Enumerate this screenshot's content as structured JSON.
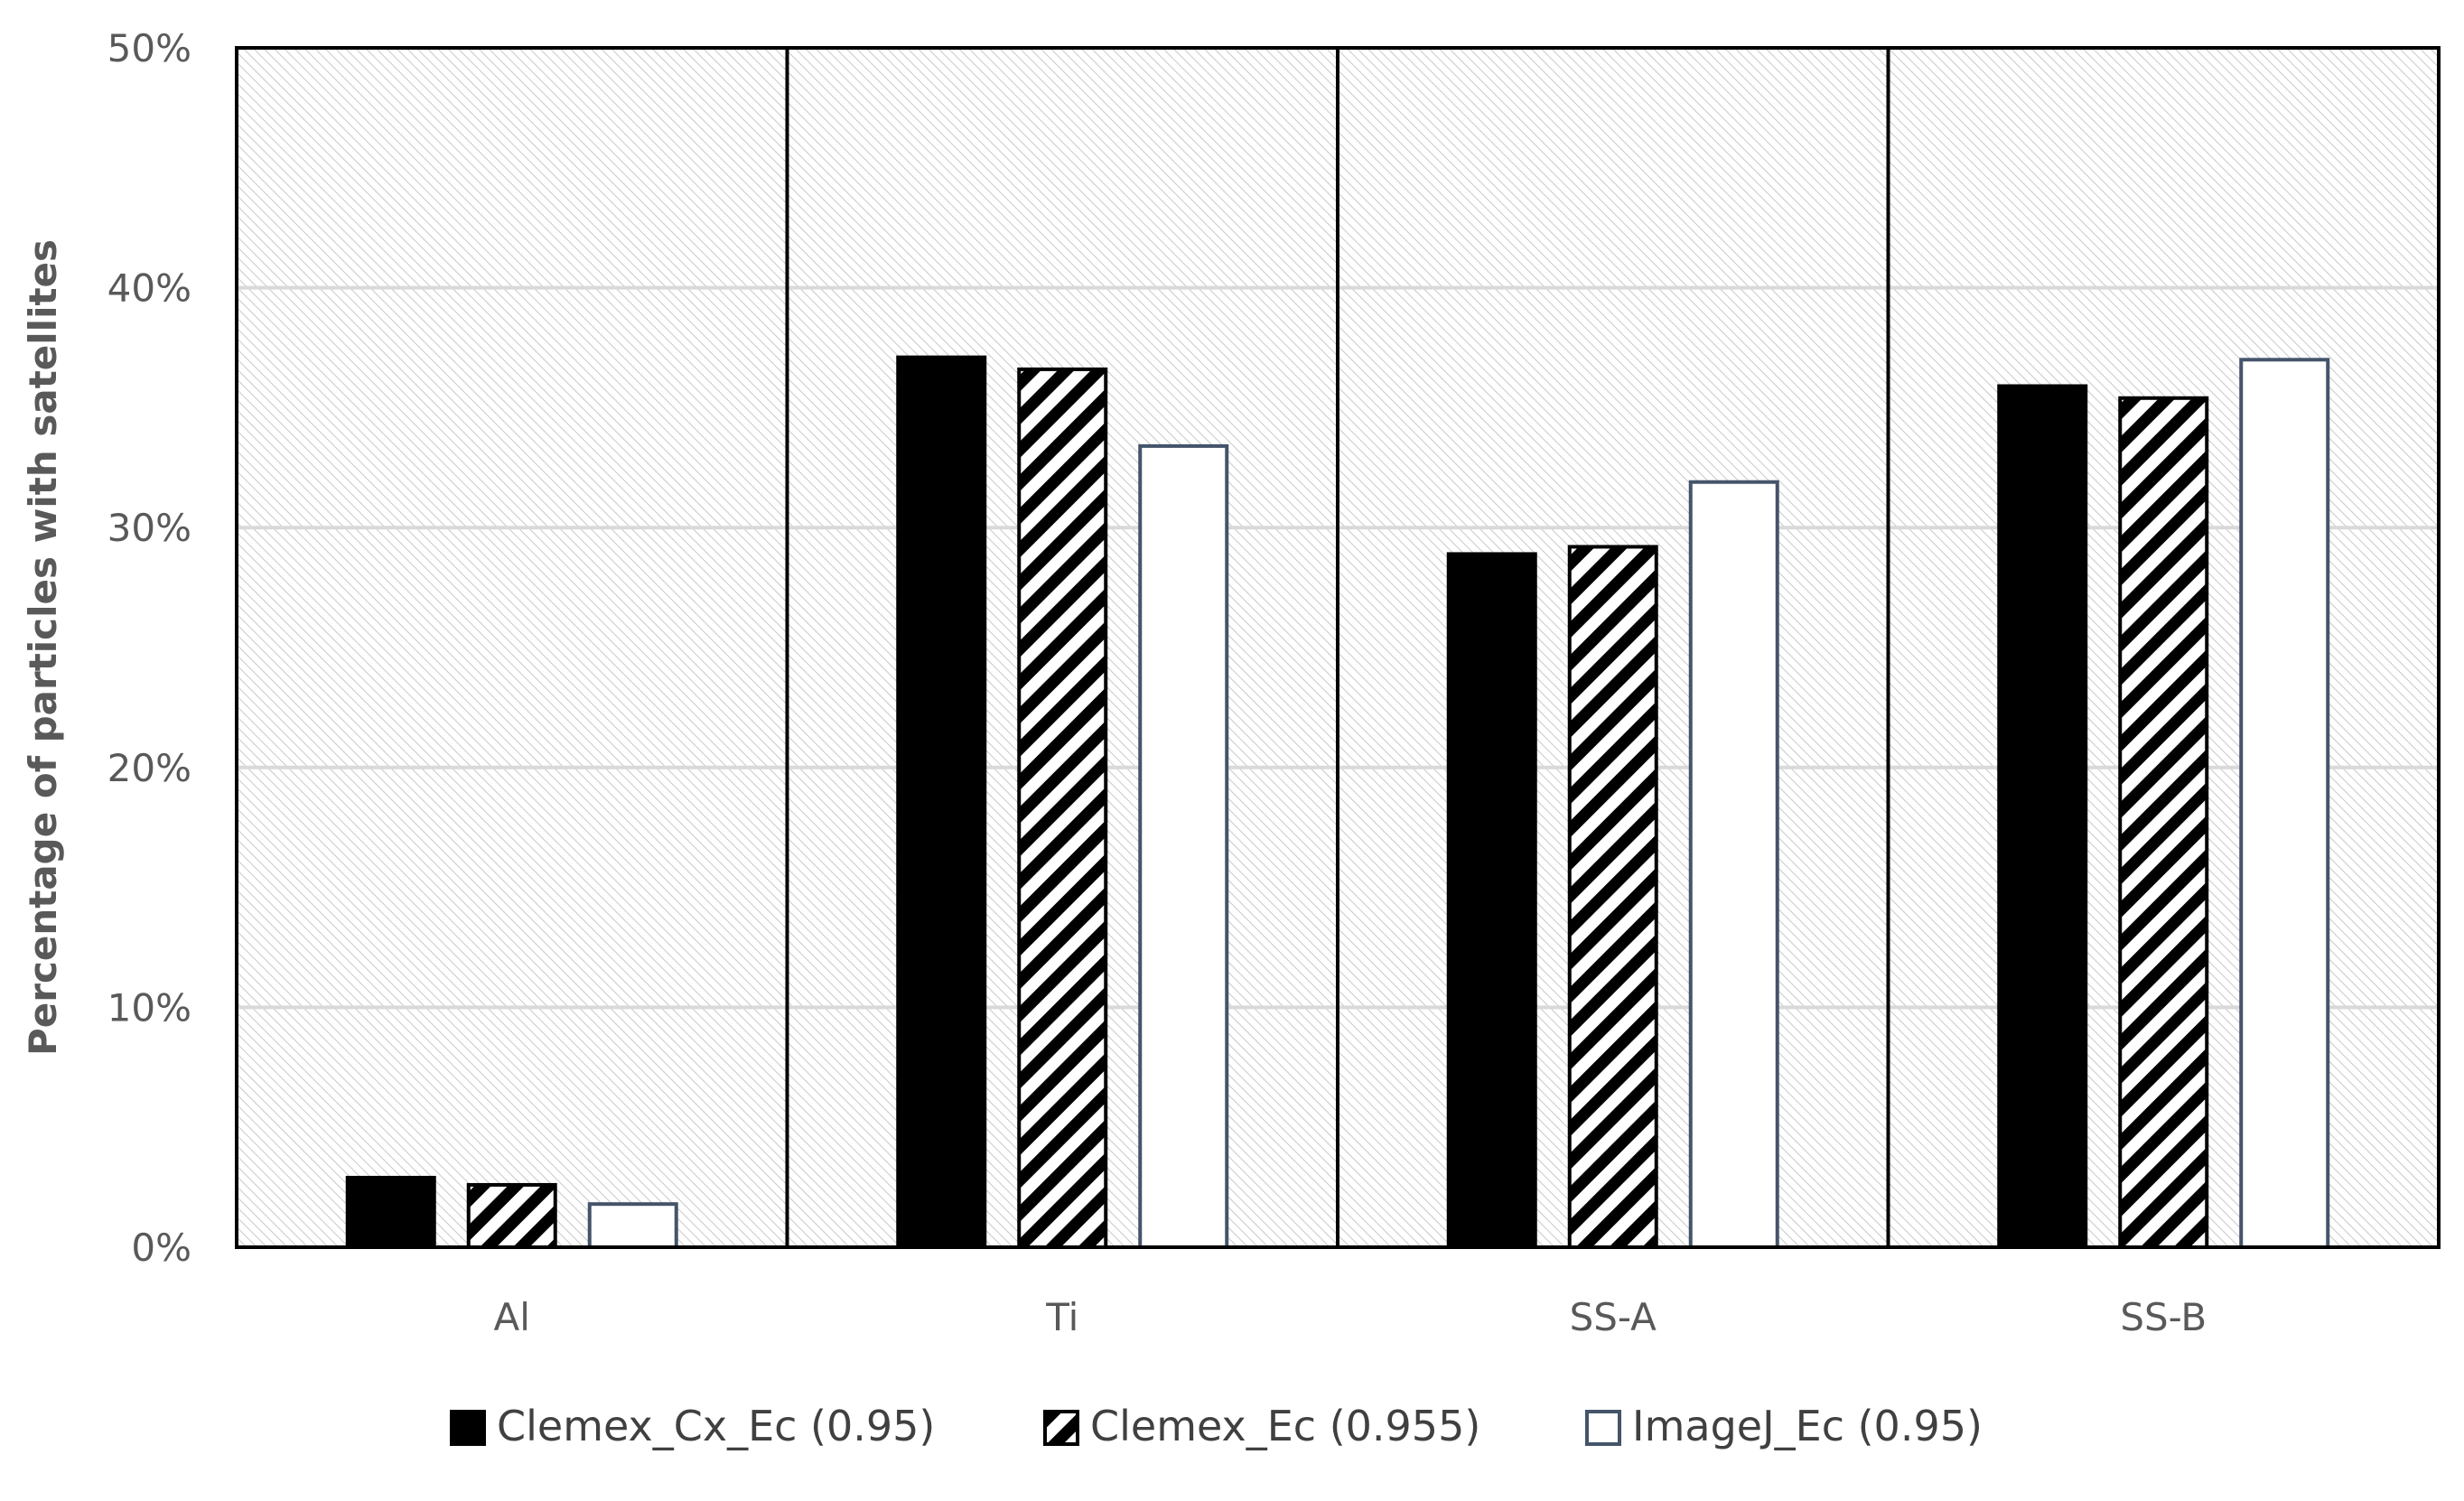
{
  "chart_data": {
    "type": "bar",
    "title": "",
    "xlabel": "",
    "ylabel": "Percentage of particles with satellites",
    "categories": [
      "Al",
      "Ti",
      "SS-A",
      "SS-B"
    ],
    "series": [
      {
        "name": "Clemex_Cx_Ec (0.95)",
        "values": [
          2.9,
          37.1,
          28.9,
          35.9
        ],
        "pattern": "solid",
        "color": "#000000"
      },
      {
        "name": "Clemex_Ec (0.955)",
        "values": [
          2.6,
          36.6,
          29.2,
          35.4
        ],
        "pattern": "hatched",
        "color": "#000000"
      },
      {
        "name": "ImageJ_Ec (0.95)",
        "values": [
          1.8,
          33.4,
          31.9,
          37.0
        ],
        "pattern": "outline",
        "color": "#44546A"
      }
    ],
    "ylim": [
      0,
      50
    ],
    "yticks": [
      0,
      10,
      20,
      30,
      40,
      50
    ],
    "ytick_labels": [
      "0%",
      "10%",
      "20%",
      "30%",
      "40%",
      "50%"
    ],
    "grid": true,
    "legend_position": "bottom",
    "colors": {
      "axis": "#000000",
      "gridline": "#D9D9D9",
      "plot_background_hatch": "#BFBFBF",
      "tick_text": "#595959"
    }
  }
}
